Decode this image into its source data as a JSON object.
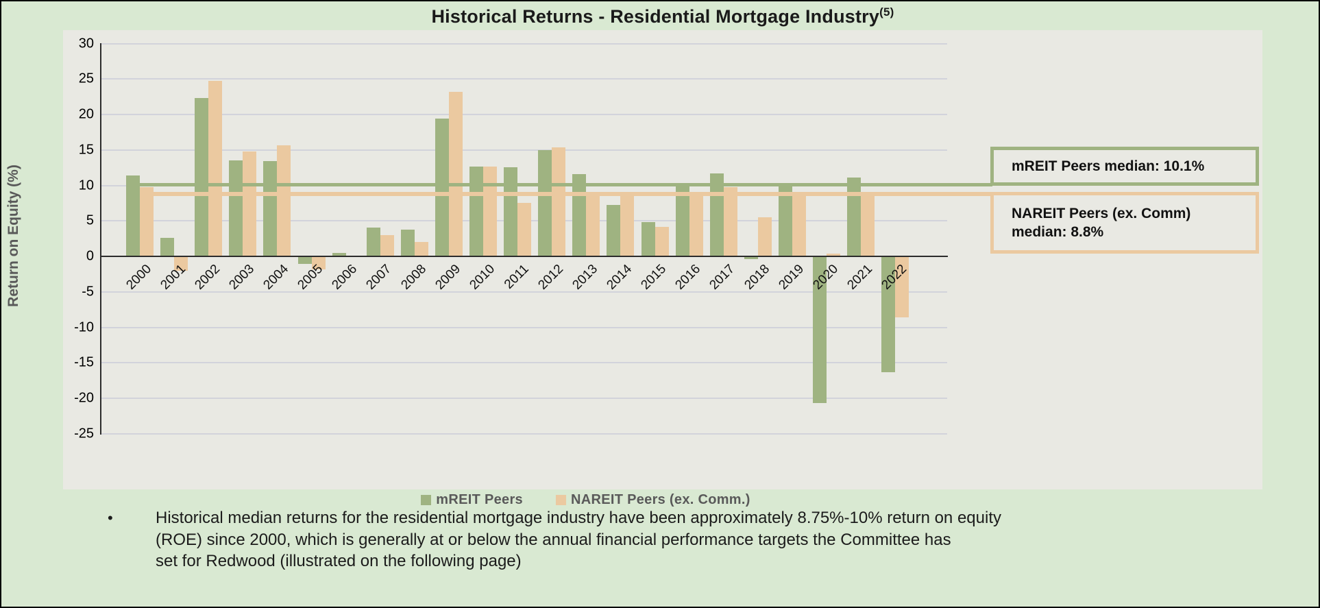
{
  "page": {
    "background_color": "#d9e9d2",
    "chart_surface_color": "#e9e9e3"
  },
  "chart": {
    "title": "Historical Returns - Residential Mortgage Industry",
    "title_superscript": "(5)",
    "y_axis_title": "Return on Equity  (%)",
    "annotations": {
      "mreit_median_box": "mREIT Peers median: 10.1%",
      "nareit_median_box": "NAREIT Peers (ex. Comm)\nmedian: 8.8%"
    }
  },
  "colors": {
    "mreit_green": "#9fb381",
    "nareit_tan": "#ebc9a0",
    "gridline": "#d2d3db",
    "axis": "#2b2b2b"
  },
  "chart_data": {
    "type": "bar",
    "title": "Historical Returns - Residential Mortgage Industry(5)",
    "xlabel": "",
    "ylabel": "Return on Equity (%)",
    "ylim": [
      -25,
      30
    ],
    "y_tick_step": 5,
    "grid": true,
    "legend_position": "bottom",
    "categories": [
      2000,
      2001,
      2002,
      2003,
      2004,
      2005,
      2006,
      2007,
      2008,
      2009,
      2010,
      2011,
      2012,
      2013,
      2014,
      2015,
      2016,
      2017,
      2018,
      2019,
      2020,
      2021,
      2022
    ],
    "series": [
      {
        "name": "mREIT Peers",
        "color": "#9fb381",
        "values": [
          11.4,
          2.6,
          22.3,
          13.5,
          13.4,
          -1.0,
          0.5,
          4.1,
          3.8,
          19.4,
          12.7,
          12.6,
          15.0,
          11.6,
          7.2,
          4.8,
          10.2,
          11.7,
          -0.3,
          10.0,
          -20.6,
          11.1,
          -16.2
        ]
      },
      {
        "name": "NAREIT Peers (ex. Comm.)",
        "color": "#ebc9a0",
        "values": [
          9.8,
          -1.9,
          24.7,
          14.8,
          15.7,
          -1.7,
          0.1,
          3.0,
          2.0,
          23.2,
          12.7,
          7.5,
          15.4,
          9.0,
          8.6,
          4.2,
          9.0,
          9.8,
          5.5,
          8.7,
          0.4,
          8.7,
          -8.5
        ]
      }
    ],
    "reference_lines": [
      {
        "label": "mREIT Peers median: 10.1%",
        "value": 10.1,
        "color": "#9fb381"
      },
      {
        "label": "NAREIT Peers (ex. Comm) median: 8.8%",
        "value": 8.8,
        "color": "#ebc9a0"
      }
    ]
  },
  "footnote": {
    "bullet": "•",
    "text": "Historical median returns for the residential mortgage industry have been approximately 8.75%-10% return on equity\n(ROE) since 2000, which is generally at or below the annual financial performance targets the Committee has\nset for Redwood (illustrated on the following page)"
  }
}
